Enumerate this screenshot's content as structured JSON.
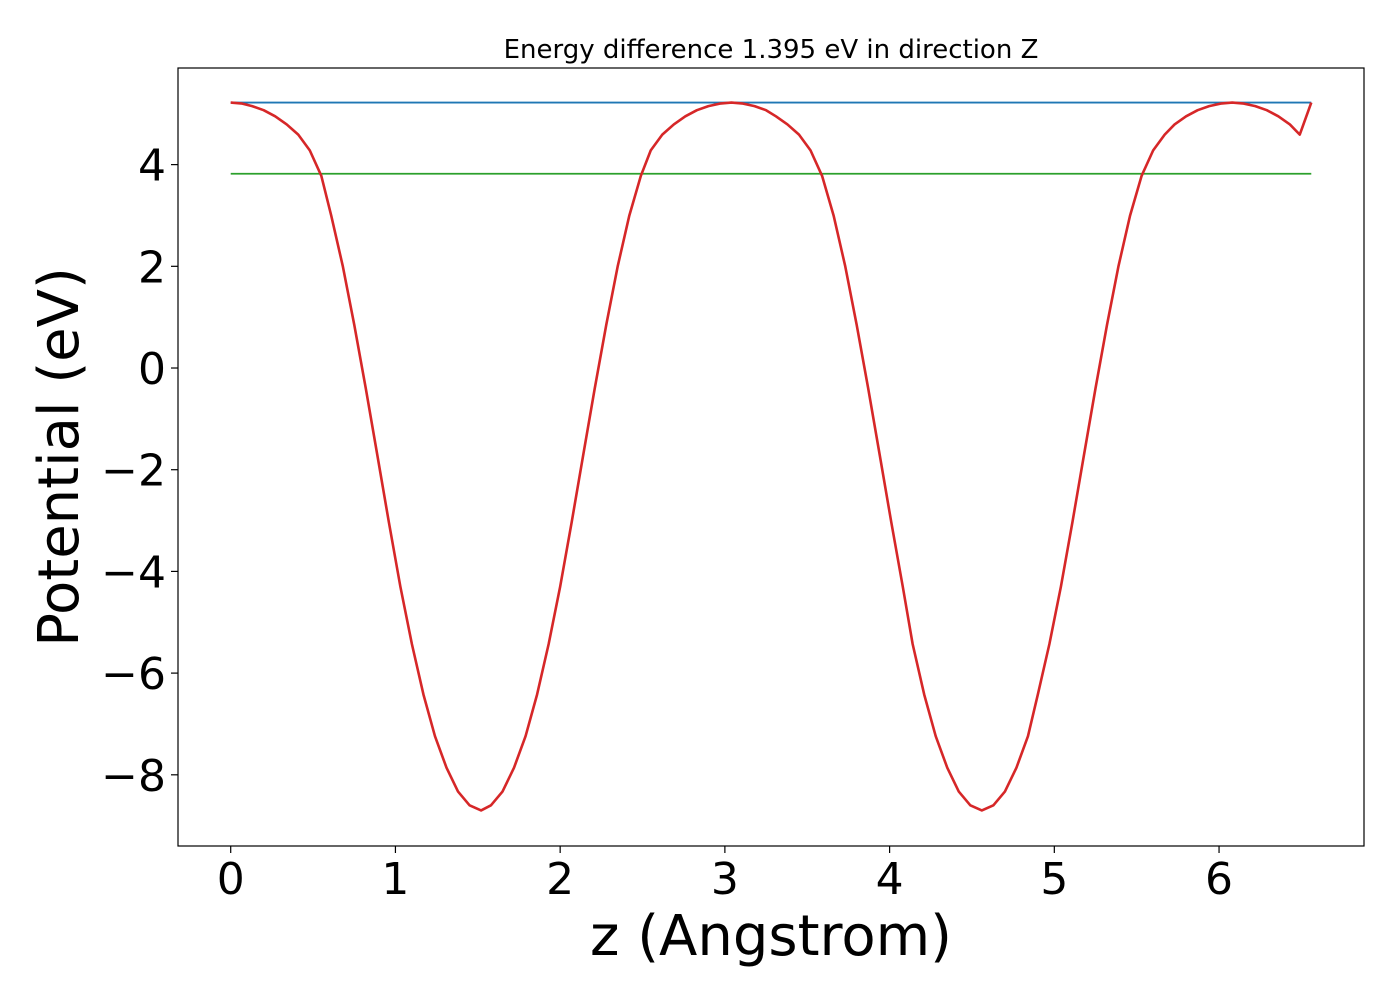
{
  "chart_data": {
    "type": "line",
    "title": "Energy difference 1.395 eV in direction Z",
    "xlabel": "z (Angstrom)",
    "ylabel": "Potential (eV)",
    "xlim": [
      -0.32,
      6.88
    ],
    "ylim": [
      -9.4,
      5.9
    ],
    "xticks": [
      0,
      1,
      2,
      3,
      4,
      5,
      6
    ],
    "xtick_labels": [
      "0",
      "1",
      "2",
      "3",
      "4",
      "5",
      "6"
    ],
    "yticks": [
      -8,
      -6,
      -4,
      -2,
      0,
      2,
      4
    ],
    "ytick_labels": [
      "−8",
      "−6",
      "−4",
      "−2",
      "0",
      "2",
      "4"
    ],
    "grid": false,
    "series": [
      {
        "color": "#d62728",
        "x": [
          0,
          0.07,
          0.13,
          0.2,
          0.27,
          0.34,
          0.41,
          0.48,
          0.55,
          0.61,
          0.68,
          0.75,
          0.82,
          0.89,
          0.96,
          1.03,
          1.1,
          1.17,
          1.24,
          1.31,
          1.38,
          1.45,
          1.52,
          1.58,
          1.65,
          1.72,
          1.79,
          1.86,
          1.93,
          2.0,
          2.07,
          2.14,
          2.21,
          2.28,
          2.35,
          2.42,
          2.49,
          2.55,
          2.62,
          2.69,
          2.76,
          2.83,
          2.9,
          2.97,
          3.04,
          3.11,
          3.18,
          3.25,
          3.31,
          3.38,
          3.45,
          3.52,
          3.59,
          3.66,
          3.73,
          3.8,
          3.87,
          3.94,
          4.01,
          4.08,
          4.14,
          4.21,
          4.28,
          4.35,
          4.42,
          4.49,
          4.56,
          4.63,
          4.7,
          4.77,
          4.84,
          4.9,
          4.97,
          5.04,
          5.11,
          5.18,
          5.25,
          5.32,
          5.39,
          5.46,
          5.53,
          5.6,
          5.67,
          5.73,
          5.8,
          5.87,
          5.94,
          6.01,
          6.08,
          6.15,
          6.22,
          6.29,
          6.36,
          6.43,
          6.49,
          6.56
        ],
        "y": [
          5.22,
          5.2,
          5.15,
          5.07,
          4.95,
          4.79,
          4.59,
          4.28,
          3.78,
          3.0,
          2.01,
          0.85,
          -0.4,
          -1.71,
          -3.03,
          -4.3,
          -5.43,
          -6.42,
          -7.24,
          -7.86,
          -8.33,
          -8.6,
          -8.7,
          -8.6,
          -8.33,
          -7.86,
          -7.24,
          -6.42,
          -5.43,
          -4.3,
          -3.03,
          -1.71,
          -0.4,
          0.85,
          2.01,
          3.0,
          3.78,
          4.28,
          4.59,
          4.79,
          4.95,
          5.07,
          5.15,
          5.2,
          5.22,
          5.2,
          5.15,
          5.07,
          4.95,
          4.79,
          4.59,
          4.28,
          3.78,
          3.0,
          2.01,
          0.85,
          -0.4,
          -1.71,
          -3.03,
          -4.3,
          -5.43,
          -6.42,
          -7.24,
          -7.86,
          -8.33,
          -8.6,
          -8.7,
          -8.6,
          -8.33,
          -7.86,
          -7.24,
          -6.42,
          -5.43,
          -4.3,
          -3.03,
          -1.71,
          -0.4,
          0.85,
          2.01,
          3.0,
          3.78,
          4.28,
          4.59,
          4.79,
          4.95,
          5.07,
          5.15,
          5.2,
          5.22,
          5.2,
          5.15,
          5.07,
          4.95,
          4.79,
          4.59,
          5.22
        ]
      },
      {
        "color": "#1f77b4",
        "x": [
          0,
          6.56
        ],
        "y": [
          5.22,
          5.22
        ]
      },
      {
        "color": "#2ca02c",
        "x": [
          0,
          6.56
        ],
        "y": [
          3.82,
          3.82
        ]
      }
    ]
  }
}
